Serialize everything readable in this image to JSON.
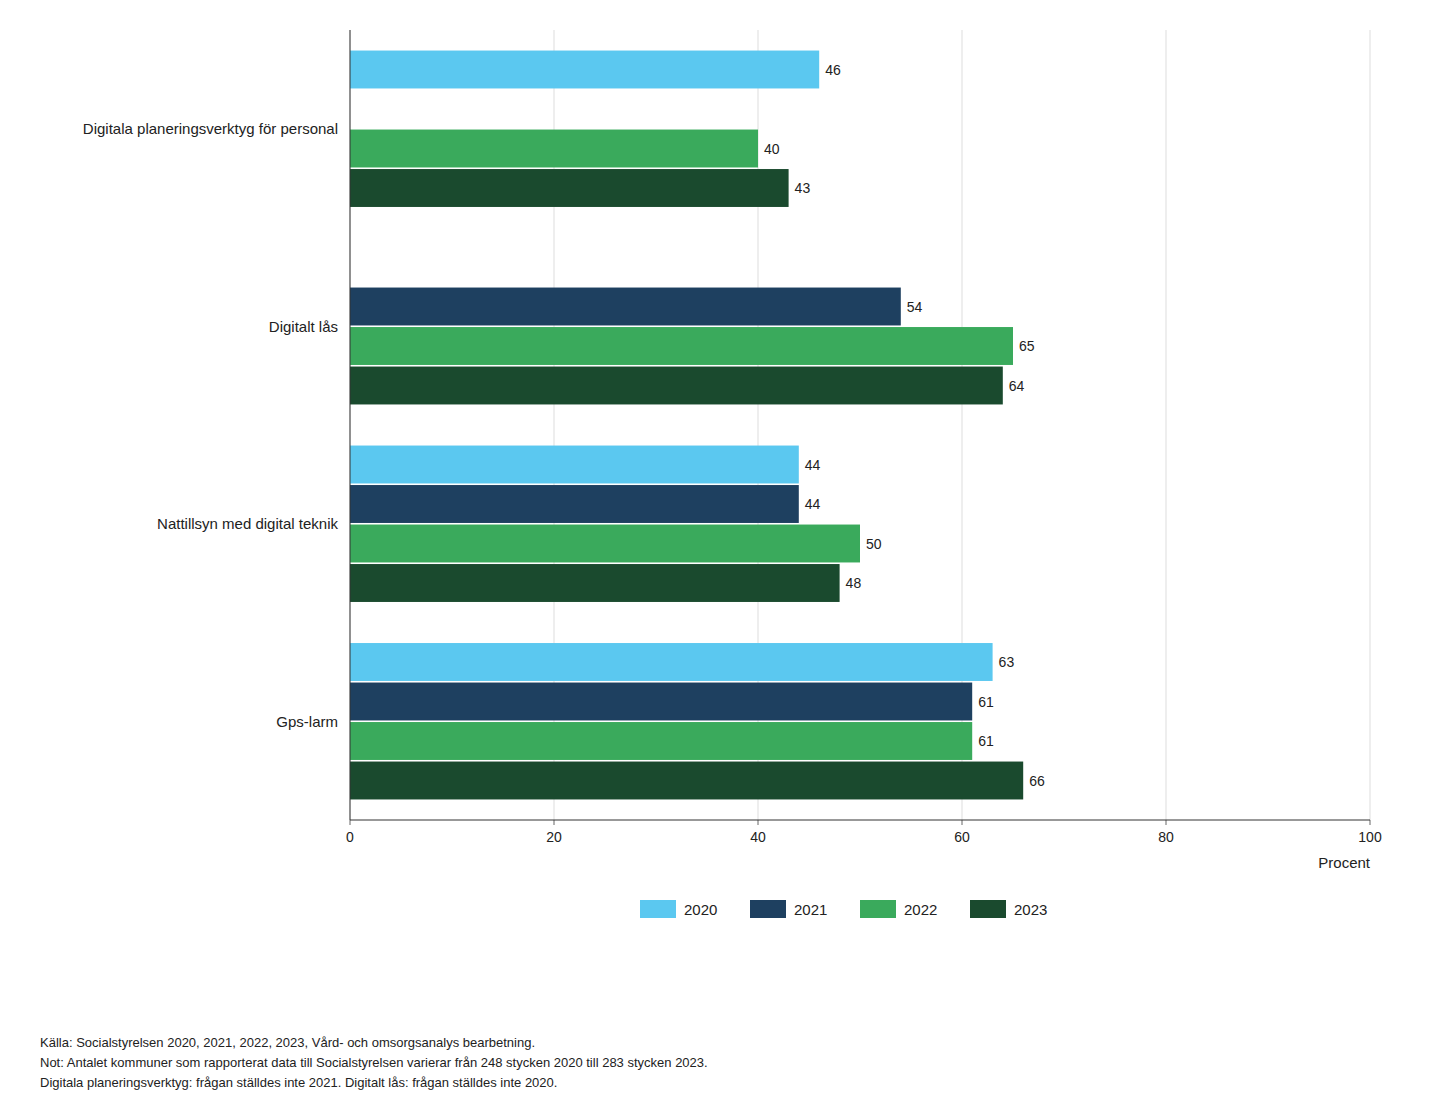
{
  "chart_data": {
    "type": "bar",
    "orientation": "horizontal",
    "categories": [
      "Digitala planeringsverktyg för personal",
      "Digitalt lås",
      "Nattillsyn med digital teknik",
      "Gps-larm"
    ],
    "series": [
      {
        "name": "2020",
        "color": "#5bc8f0",
        "values": [
          46,
          null,
          44,
          63
        ]
      },
      {
        "name": "2021",
        "color": "#1e4060",
        "values": [
          null,
          54,
          44,
          61
        ]
      },
      {
        "name": "2022",
        "color": "#3aaa5c",
        "values": [
          40,
          65,
          50,
          61
        ]
      },
      {
        "name": "2023",
        "color": "#1a4a2e",
        "values": [
          43,
          64,
          48,
          66
        ]
      }
    ],
    "xlim": [
      0,
      100
    ],
    "xticks": [
      0,
      20,
      40,
      60,
      80,
      100
    ],
    "xlabel": "Procent",
    "grid": true,
    "legend": "bottom",
    "data_labels": true,
    "annotations": [
      "Källa: Socialstyrelsen 2020, 2021, 2022, 2023, Vård- och omsorgsanalys bearbetning.",
      "Not: Antalet kommuner som rapporterat data till Socialstyrelsen varierar från 248 stycken 2020 till 283 stycken 2023.",
      "Digitala planeringsverktyg: frågan ställdes inte 2021. Digitalt lås: frågan ställdes inte 2020."
    ]
  }
}
